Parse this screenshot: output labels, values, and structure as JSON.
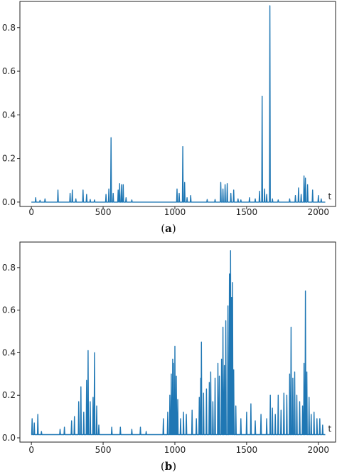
{
  "chart_data": [
    {
      "type": "line",
      "caption": "(a)",
      "caption_letter": "a",
      "xlabel": "t",
      "xlim": [
        -80,
        2120
      ],
      "ylim": [
        -0.02,
        0.92
      ],
      "xticks": [
        0,
        500,
        1000,
        1500,
        2000
      ],
      "yticks": [
        0.0,
        0.2,
        0.4,
        0.6,
        0.8
      ],
      "ytick_labels": [
        "0.0",
        "0.2",
        "0.4",
        "0.6",
        "0.8"
      ],
      "color": "#1f77b4",
      "grid": false,
      "spikes": [
        [
          30,
          0.02
        ],
        [
          60,
          0.008
        ],
        [
          95,
          0.015
        ],
        [
          185,
          0.055
        ],
        [
          270,
          0.04
        ],
        [
          285,
          0.055
        ],
        [
          310,
          0.015
        ],
        [
          360,
          0.055
        ],
        [
          385,
          0.035
        ],
        [
          410,
          0.012
        ],
        [
          440,
          0.01
        ],
        [
          520,
          0.035
        ],
        [
          540,
          0.06
        ],
        [
          555,
          0.295
        ],
        [
          570,
          0.04
        ],
        [
          605,
          0.055
        ],
        [
          615,
          0.085
        ],
        [
          628,
          0.08
        ],
        [
          640,
          0.08
        ],
        [
          660,
          0.02
        ],
        [
          700,
          0.01
        ],
        [
          1015,
          0.06
        ],
        [
          1030,
          0.04
        ],
        [
          1055,
          0.255
        ],
        [
          1068,
          0.09
        ],
        [
          1085,
          0.02
        ],
        [
          1110,
          0.03
        ],
        [
          1225,
          0.012
        ],
        [
          1280,
          0.012
        ],
        [
          1320,
          0.09
        ],
        [
          1335,
          0.06
        ],
        [
          1350,
          0.08
        ],
        [
          1365,
          0.085
        ],
        [
          1390,
          0.04
        ],
        [
          1410,
          0.055
        ],
        [
          1440,
          0.015
        ],
        [
          1460,
          0.01
        ],
        [
          1520,
          0.02
        ],
        [
          1560,
          0.015
        ],
        [
          1590,
          0.05
        ],
        [
          1608,
          0.485
        ],
        [
          1625,
          0.06
        ],
        [
          1640,
          0.035
        ],
        [
          1662,
          0.9
        ],
        [
          1680,
          0.015
        ],
        [
          1720,
          0.01
        ],
        [
          1800,
          0.015
        ],
        [
          1840,
          0.03
        ],
        [
          1862,
          0.065
        ],
        [
          1880,
          0.035
        ],
        [
          1900,
          0.12
        ],
        [
          1910,
          0.11
        ],
        [
          1925,
          0.08
        ],
        [
          1960,
          0.055
        ],
        [
          2000,
          0.03
        ],
        [
          2020,
          0.015
        ]
      ],
      "baseline": 0.0,
      "end_x": 2048
    },
    {
      "type": "line",
      "caption": "(b)",
      "caption_letter": "b",
      "xlabel": "t",
      "xlim": [
        -80,
        2120
      ],
      "ylim": [
        -0.02,
        0.92
      ],
      "xticks": [
        0,
        500,
        1000,
        1500,
        2000
      ],
      "yticks": [
        0.0,
        0.2,
        0.4,
        0.6,
        0.8
      ],
      "ytick_labels": [
        "0.0",
        "0.2",
        "0.4",
        "0.6",
        "0.8"
      ],
      "color": "#1f77b4",
      "grid": false,
      "spikes": [
        [
          5,
          0.09
        ],
        [
          20,
          0.07
        ],
        [
          45,
          0.11
        ],
        [
          70,
          0.03
        ],
        [
          200,
          0.04
        ],
        [
          230,
          0.05
        ],
        [
          280,
          0.08
        ],
        [
          300,
          0.1
        ],
        [
          330,
          0.17
        ],
        [
          345,
          0.24
        ],
        [
          365,
          0.12
        ],
        [
          385,
          0.27
        ],
        [
          395,
          0.41
        ],
        [
          410,
          0.17
        ],
        [
          430,
          0.19
        ],
        [
          440,
          0.4
        ],
        [
          455,
          0.15
        ],
        [
          470,
          0.06
        ],
        [
          560,
          0.05
        ],
        [
          620,
          0.05
        ],
        [
          700,
          0.04
        ],
        [
          760,
          0.05
        ],
        [
          800,
          0.03
        ],
        [
          920,
          0.09
        ],
        [
          950,
          0.12
        ],
        [
          965,
          0.2
        ],
        [
          975,
          0.3
        ],
        [
          985,
          0.37
        ],
        [
          990,
          0.35
        ],
        [
          1000,
          0.43
        ],
        [
          1010,
          0.29
        ],
        [
          1020,
          0.18
        ],
        [
          1040,
          0.09
        ],
        [
          1060,
          0.12
        ],
        [
          1080,
          0.11
        ],
        [
          1120,
          0.13
        ],
        [
          1150,
          0.09
        ],
        [
          1170,
          0.19
        ],
        [
          1180,
          0.28
        ],
        [
          1185,
          0.45
        ],
        [
          1200,
          0.21
        ],
        [
          1220,
          0.23
        ],
        [
          1240,
          0.26
        ],
        [
          1250,
          0.31
        ],
        [
          1265,
          0.17
        ],
        [
          1280,
          0.28
        ],
        [
          1300,
          0.35
        ],
        [
          1310,
          0.29
        ],
        [
          1325,
          0.37
        ],
        [
          1335,
          0.52
        ],
        [
          1345,
          0.34
        ],
        [
          1355,
          0.55
        ],
        [
          1370,
          0.62
        ],
        [
          1380,
          0.77
        ],
        [
          1388,
          0.88
        ],
        [
          1395,
          0.66
        ],
        [
          1402,
          0.73
        ],
        [
          1410,
          0.32
        ],
        [
          1425,
          0.15
        ],
        [
          1460,
          0.09
        ],
        [
          1500,
          0.12
        ],
        [
          1530,
          0.16
        ],
        [
          1560,
          0.08
        ],
        [
          1600,
          0.11
        ],
        [
          1640,
          0.09
        ],
        [
          1665,
          0.2
        ],
        [
          1680,
          0.14
        ],
        [
          1700,
          0.11
        ],
        [
          1720,
          0.2
        ],
        [
          1740,
          0.13
        ],
        [
          1760,
          0.21
        ],
        [
          1780,
          0.2
        ],
        [
          1800,
          0.3
        ],
        [
          1810,
          0.52
        ],
        [
          1822,
          0.28
        ],
        [
          1835,
          0.31
        ],
        [
          1850,
          0.2
        ],
        [
          1870,
          0.17
        ],
        [
          1890,
          0.15
        ],
        [
          1900,
          0.35
        ],
        [
          1910,
          0.69
        ],
        [
          1920,
          0.31
        ],
        [
          1935,
          0.19
        ],
        [
          1950,
          0.11
        ],
        [
          1970,
          0.12
        ],
        [
          1990,
          0.09
        ],
        [
          2010,
          0.09
        ],
        [
          2030,
          0.06
        ]
      ],
      "baseline": 0.015,
      "end_x": 2048
    }
  ]
}
